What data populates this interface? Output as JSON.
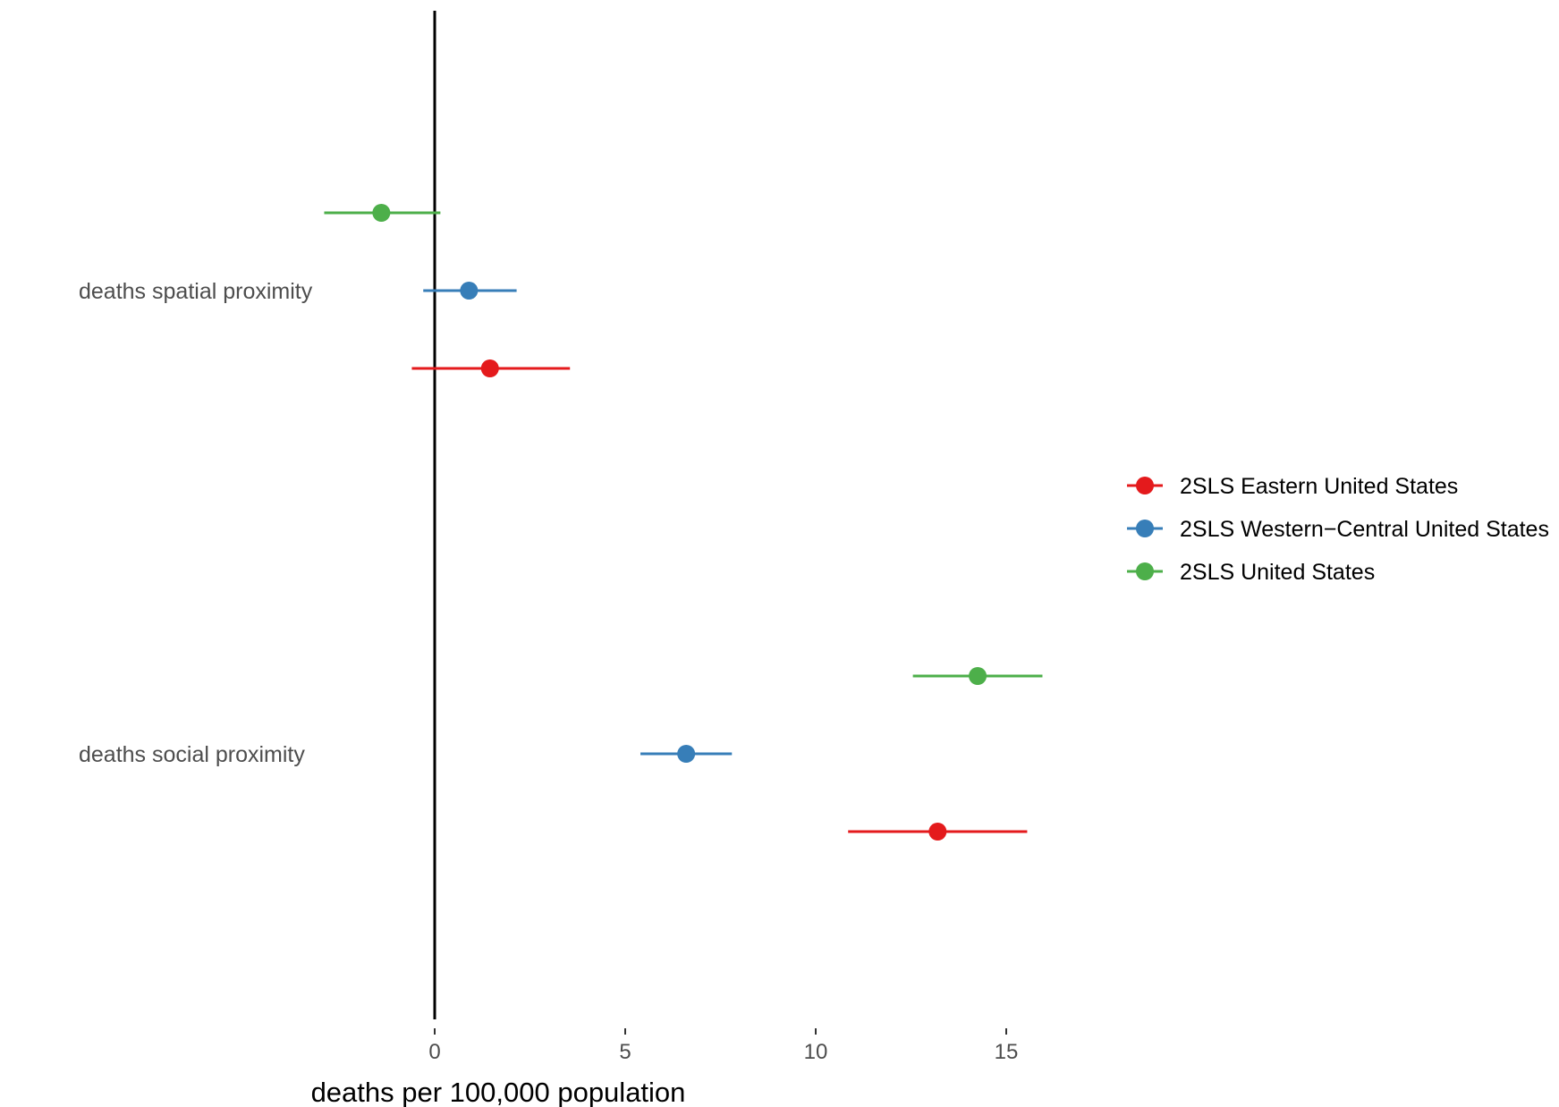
{
  "chart_data": {
    "type": "scatter",
    "variant": "coefficient-plot-horizontal-error-bars",
    "title": "",
    "xlabel": "deaths per 100,000 population",
    "ylabel": "",
    "xlim": [
      -4,
      16
    ],
    "xticks": [
      0,
      5,
      10,
      15
    ],
    "reference_line_x": 0,
    "grid": false,
    "legend_position": "right",
    "categories": [
      "deaths spatial proximity",
      "deaths social proximity"
    ],
    "series": [
      {
        "name": "2SLS Eastern United States",
        "color": "#E41A1C",
        "points": [
          {
            "category": "deaths spatial proximity",
            "estimate": 1.45,
            "lower": -0.6,
            "upper": 3.55
          },
          {
            "category": "deaths social proximity",
            "estimate": 13.2,
            "lower": 10.85,
            "upper": 15.55
          }
        ]
      },
      {
        "name": "2SLS Western−Central United States",
        "color": "#377EB8",
        "points": [
          {
            "category": "deaths spatial proximity",
            "estimate": 0.9,
            "lower": -0.3,
            "upper": 2.15
          },
          {
            "category": "deaths social proximity",
            "estimate": 6.6,
            "lower": 5.4,
            "upper": 7.8
          }
        ]
      },
      {
        "name": "2SLS United States",
        "color": "#4DAF4A",
        "points": [
          {
            "category": "deaths spatial proximity",
            "estimate": -1.4,
            "lower": -2.9,
            "upper": 0.15
          },
          {
            "category": "deaths social proximity",
            "estimate": 14.25,
            "lower": 12.55,
            "upper": 15.95
          }
        ]
      }
    ]
  }
}
